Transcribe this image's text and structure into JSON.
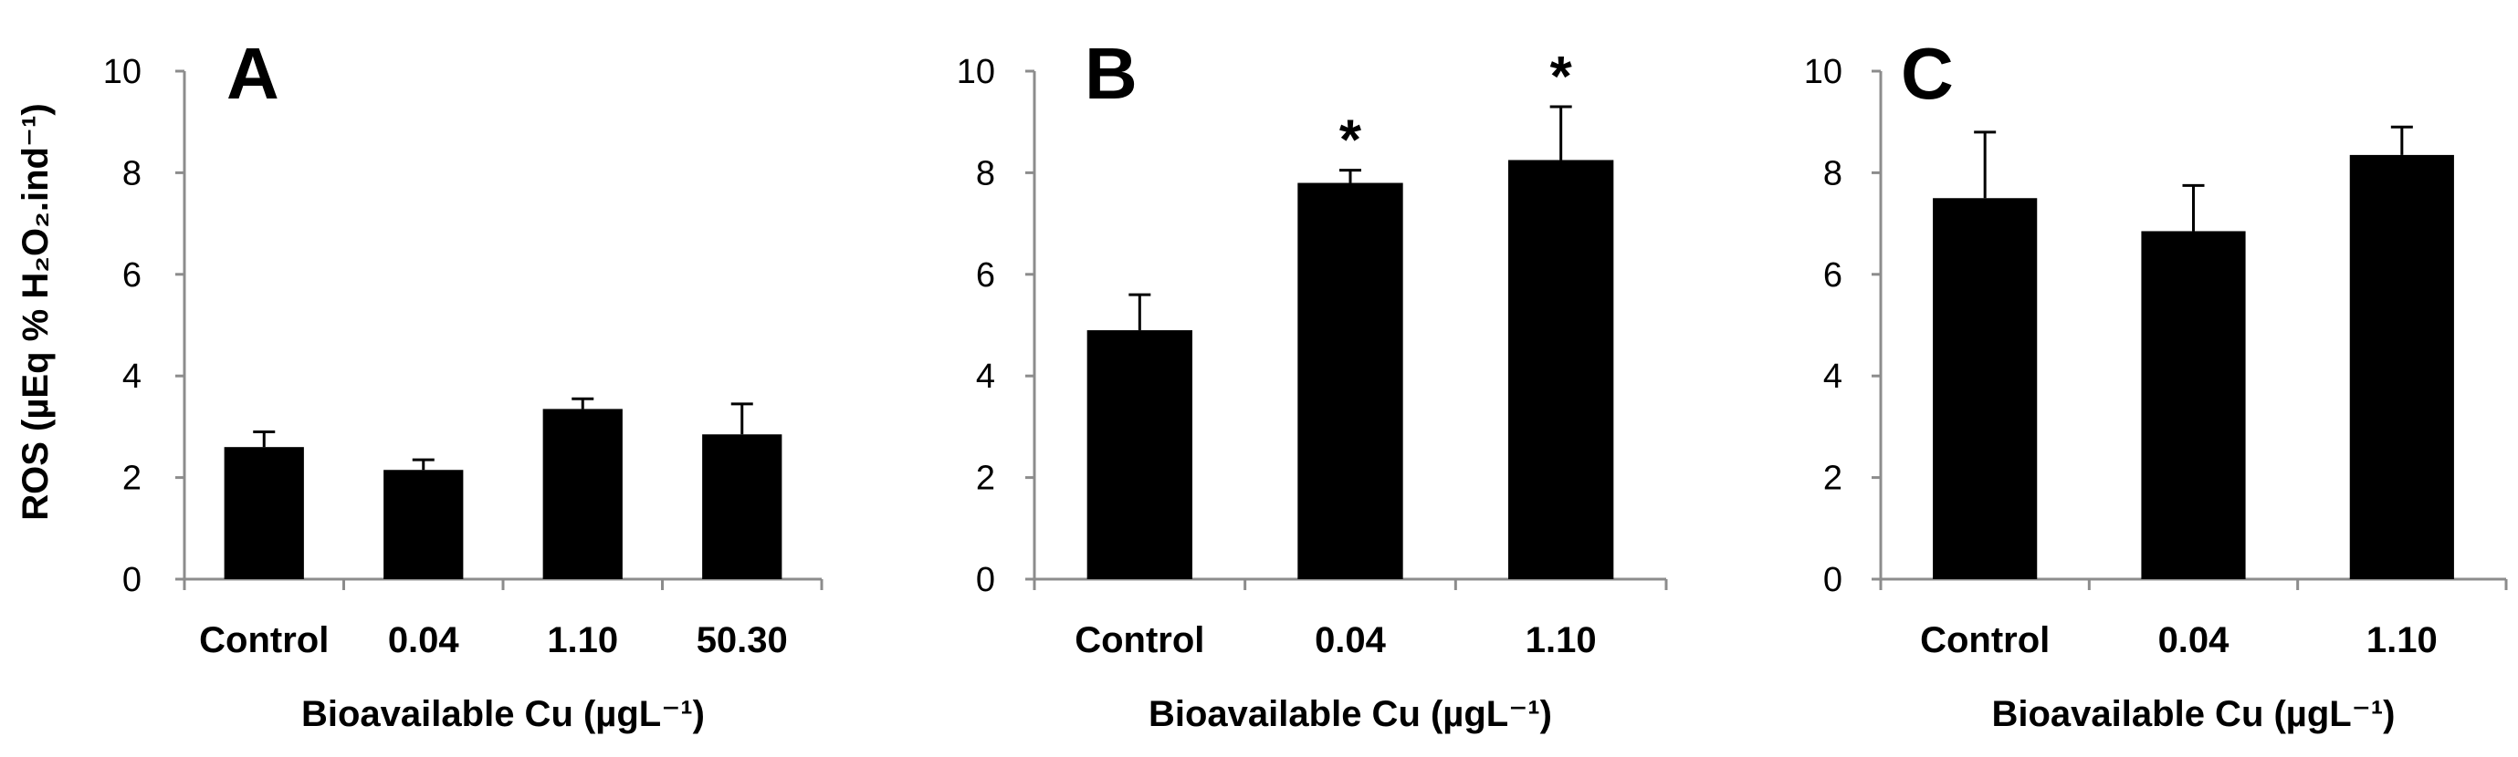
{
  "chart_data": [
    {
      "type": "bar",
      "panel": "A",
      "categories": [
        "Control",
        "0.04",
        "1.10",
        "50.30"
      ],
      "values": [
        2.6,
        2.15,
        3.35,
        2.85
      ],
      "errors": [
        0.3,
        0.2,
        0.2,
        0.6
      ],
      "significance": [
        "",
        "",
        "",
        ""
      ],
      "ylim": [
        0,
        10
      ],
      "yticks": [
        "0",
        "2",
        "4",
        "6",
        "8",
        "10"
      ],
      "ylabel": "ROS (µEq % H₂O₂.ind⁻¹)",
      "xlabel": "Bioavailable Cu (µgL⁻¹)",
      "bar_color": "#000000",
      "grid": false
    },
    {
      "type": "bar",
      "panel": "B",
      "categories": [
        "Control",
        "0.04",
        "1.10"
      ],
      "values": [
        4.9,
        7.8,
        8.25
      ],
      "errors": [
        0.7,
        0.25,
        1.05
      ],
      "significance": [
        "",
        "*",
        "*"
      ],
      "ylim": [
        0,
        10
      ],
      "yticks": [
        "0",
        "2",
        "4",
        "6",
        "8",
        "10"
      ],
      "ylabel": "",
      "xlabel": "Bioavailable Cu (µgL⁻¹)",
      "bar_color": "#000000",
      "grid": false
    },
    {
      "type": "bar",
      "panel": "C",
      "categories": [
        "Control",
        "0.04",
        "1.10"
      ],
      "values": [
        7.5,
        6.85,
        8.35
      ],
      "errors": [
        1.3,
        0.9,
        0.55
      ],
      "significance": [
        "",
        "",
        ""
      ],
      "ylim": [
        0,
        10
      ],
      "yticks": [
        "0",
        "2",
        "4",
        "6",
        "8",
        "10"
      ],
      "ylabel": "",
      "xlabel": "Bioavailable Cu (µgL⁻¹)",
      "bar_color": "#000000",
      "grid": false
    }
  ]
}
